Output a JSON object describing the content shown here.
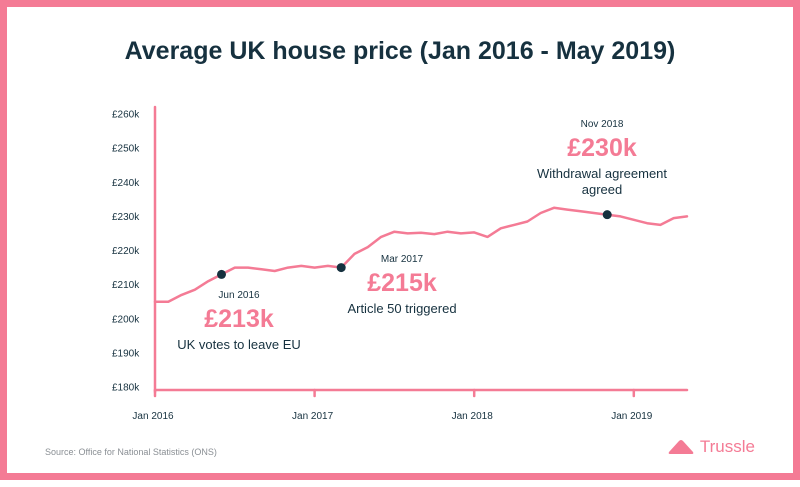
{
  "chart_data": {
    "type": "line",
    "title": "Average UK house price (Jan 2016 - May 2019)",
    "xlabel": "",
    "ylabel": "",
    "ylim": [
      180,
      260
    ],
    "yticks": [
      260,
      250,
      240,
      230,
      220,
      210,
      200,
      190,
      180
    ],
    "ytick_labels": [
      "£260k",
      "£250k",
      "£240k",
      "£230k",
      "£220k",
      "£210k",
      "£200k",
      "£190k",
      "£180k"
    ],
    "xticks": [
      0,
      12,
      24,
      36
    ],
    "xtick_labels": [
      "Jan 2016",
      "Jan 2017",
      "Jan 2018",
      "Jan 2019"
    ],
    "x_range": [
      0,
      40
    ],
    "series": [
      {
        "name": "Average UK house price (£k)",
        "x": [
          0,
          1,
          2,
          3,
          4,
          5,
          6,
          7,
          8,
          9,
          10,
          11,
          12,
          13,
          14,
          15,
          16,
          17,
          18,
          19,
          20,
          21,
          22,
          23,
          24,
          25,
          26,
          27,
          28,
          29,
          30,
          31,
          32,
          33,
          34,
          35,
          36,
          37,
          38,
          39,
          40
        ],
        "values": [
          205,
          205,
          207,
          208.5,
          211,
          213,
          215,
          215,
          214.5,
          214,
          215,
          215.5,
          215,
          215.5,
          215,
          219,
          221,
          224,
          225.5,
          225,
          225.2,
          224.8,
          225.5,
          225,
          225.3,
          224,
          226.5,
          227.5,
          228.5,
          231,
          232.5,
          232,
          231.5,
          231,
          230.5,
          230,
          229,
          228,
          227.5,
          229.5,
          230
        ]
      }
    ],
    "annotations": [
      {
        "x": 5,
        "y": 213,
        "date": "Jun 2016",
        "value": "£213k",
        "label": "UK votes to leave EU"
      },
      {
        "x": 14,
        "y": 215,
        "date": "Mar 2017",
        "value": "£215k",
        "label": "Article 50 triggered"
      },
      {
        "x": 34,
        "y": 230.5,
        "date": "Nov 2018",
        "value": "£230k",
        "label_lines": [
          "Withdrawal agreement",
          "agreed"
        ]
      }
    ]
  },
  "footer": {
    "source": "Source: Office for National Statistics (ONS)",
    "brand": "Trussle"
  },
  "colors": {
    "accent": "#f47b95",
    "text": "#16313f",
    "border": "#f47b95"
  }
}
